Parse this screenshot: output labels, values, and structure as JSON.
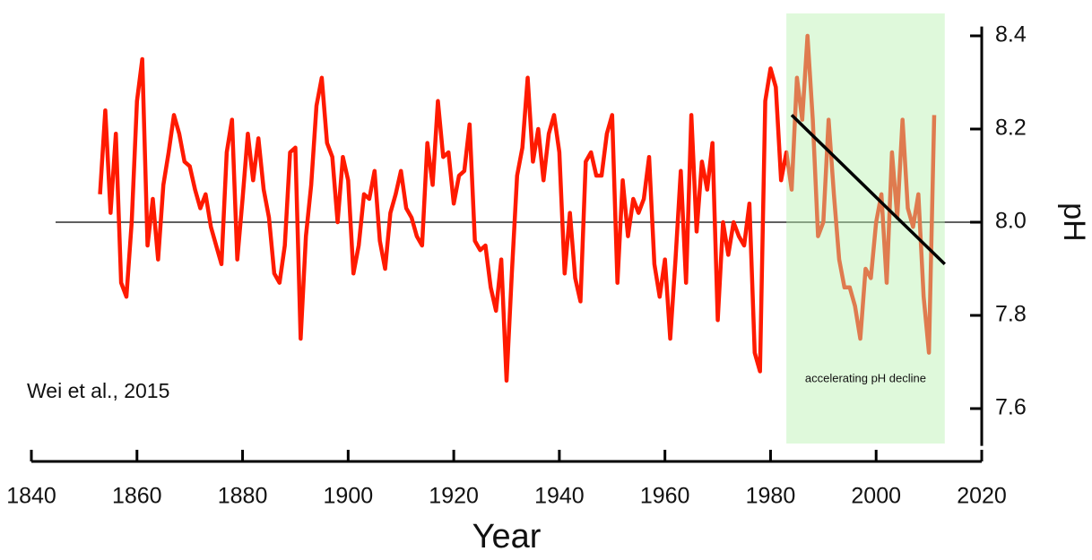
{
  "chart_data": {
    "type": "line",
    "x_label": "Year",
    "y_label": "pH",
    "annotation": "Wei et al., 2015",
    "highlight_label": "accelerating pH decline",
    "highlight_xlim": [
      1983,
      2013
    ],
    "highlight_color": "#b9f2b0",
    "reference_y": 8.0,
    "trend_line": {
      "x": [
        1984,
        2013
      ],
      "y": [
        8.23,
        7.91
      ],
      "color": "#000000"
    },
    "x": [
      1853,
      1854,
      1855,
      1856,
      1857,
      1858,
      1859,
      1860,
      1861,
      1862,
      1863,
      1864,
      1865,
      1866,
      1867,
      1868,
      1869,
      1870,
      1871,
      1872,
      1873,
      1874,
      1875,
      1876,
      1877,
      1878,
      1879,
      1880,
      1881,
      1882,
      1883,
      1884,
      1885,
      1886,
      1887,
      1888,
      1889,
      1890,
      1891,
      1892,
      1893,
      1894,
      1895,
      1896,
      1897,
      1898,
      1899,
      1900,
      1901,
      1902,
      1903,
      1904,
      1905,
      1906,
      1907,
      1908,
      1909,
      1910,
      1911,
      1912,
      1913,
      1914,
      1915,
      1916,
      1917,
      1918,
      1919,
      1920,
      1921,
      1922,
      1923,
      1924,
      1925,
      1926,
      1927,
      1928,
      1929,
      1930,
      1931,
      1932,
      1933,
      1934,
      1935,
      1936,
      1937,
      1938,
      1939,
      1940,
      1941,
      1942,
      1943,
      1944,
      1945,
      1946,
      1947,
      1948,
      1949,
      1950,
      1951,
      1952,
      1953,
      1954,
      1955,
      1956,
      1957,
      1958,
      1959,
      1960,
      1961,
      1962,
      1963,
      1964,
      1965,
      1966,
      1967,
      1968,
      1969,
      1970,
      1971,
      1972,
      1973,
      1974,
      1975,
      1976,
      1977,
      1978,
      1979,
      1980,
      1981,
      1982,
      1983,
      1984,
      1985,
      1986,
      1987,
      1988,
      1989,
      1990,
      1991,
      1992,
      1993,
      1994,
      1995,
      1996,
      1997,
      1998,
      1999,
      2000,
      2001,
      2002,
      2003,
      2004,
      2005,
      2006,
      2007,
      2008,
      2009,
      2010,
      2011
    ],
    "series": [
      {
        "name": "pH",
        "color": "#ff1a00",
        "values": [
          8.06,
          8.24,
          8.02,
          8.19,
          7.87,
          7.84,
          8.0,
          8.26,
          8.35,
          7.95,
          8.05,
          7.92,
          8.08,
          8.15,
          8.23,
          8.19,
          8.13,
          8.12,
          8.07,
          8.03,
          8.06,
          7.99,
          7.95,
          7.91,
          8.15,
          8.22,
          7.92,
          8.05,
          8.19,
          8.09,
          8.18,
          8.07,
          8.01,
          7.89,
          7.87,
          7.95,
          8.15,
          8.16,
          7.75,
          7.97,
          8.08,
          8.25,
          8.31,
          8.17,
          8.14,
          8.0,
          8.14,
          8.09,
          7.89,
          7.95,
          8.06,
          8.05,
          8.11,
          7.96,
          7.9,
          8.02,
          8.06,
          8.11,
          8.03,
          8.01,
          7.97,
          7.95,
          8.17,
          8.08,
          8.26,
          8.14,
          8.15,
          8.04,
          8.1,
          8.11,
          8.21,
          7.96,
          7.94,
          7.95,
          7.86,
          7.81,
          7.92,
          7.66,
          7.89,
          8.1,
          8.16,
          8.31,
          8.13,
          8.2,
          8.09,
          8.19,
          8.23,
          8.15,
          7.89,
          8.02,
          7.88,
          7.83,
          8.13,
          8.15,
          8.1,
          8.1,
          8.19,
          8.23,
          7.87,
          8.09,
          7.97,
          8.05,
          8.02,
          8.05,
          8.14,
          7.91,
          7.84,
          7.92,
          7.75,
          7.92,
          8.11,
          7.87,
          8.23,
          7.98,
          8.13,
          8.07,
          8.17,
          7.79,
          8.0,
          7.93,
          8.0,
          7.97,
          7.95,
          8.04,
          7.72,
          7.68,
          8.26,
          8.33,
          8.29,
          8.09,
          8.15,
          8.07,
          8.31,
          8.22,
          8.4,
          8.22,
          7.97,
          8.0,
          8.22,
          8.06,
          7.92,
          7.86,
          7.86,
          7.82,
          7.75,
          7.9,
          7.88,
          8.0,
          8.06,
          7.87,
          8.15,
          8.01,
          8.22,
          8.03,
          7.99,
          8.06,
          7.84,
          7.72,
          8.23
        ]
      }
    ],
    "xlim": [
      1840,
      2020
    ],
    "xticks": [
      1840,
      1860,
      1880,
      1900,
      1920,
      1940,
      1960,
      1980,
      2000,
      2020
    ],
    "ylim": [
      7.52,
      8.42
    ],
    "yticks": [
      {
        "value": 7.6,
        "label": "7.6"
      },
      {
        "value": 7.8,
        "label": "7.8"
      },
      {
        "value": 8.0,
        "label": "8.0"
      },
      {
        "value": 8.2,
        "label": "8.2"
      },
      {
        "value": 8.4,
        "label": "8.4"
      }
    ],
    "grid": false
  }
}
